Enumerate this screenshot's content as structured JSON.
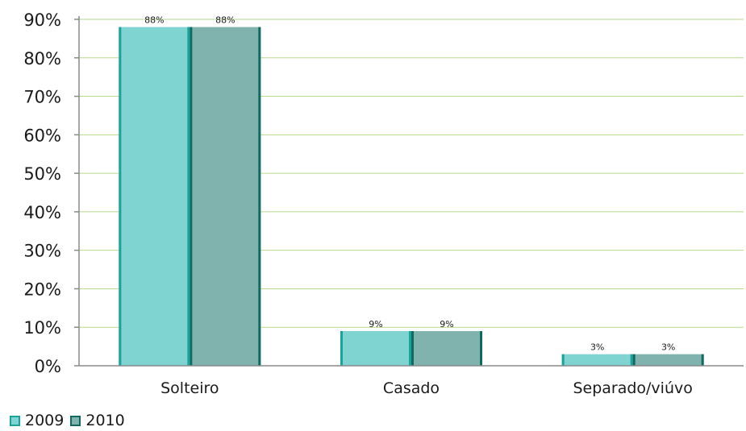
{
  "chart_data": {
    "type": "bar",
    "title": "",
    "xlabel": "",
    "ylabel": "",
    "categories": [
      "Solteiro",
      "Casado",
      "Separado/viúvo"
    ],
    "series": [
      {
        "name": "2009",
        "values": [
          88,
          9,
          3
        ],
        "labels": [
          "88%",
          "9%",
          "3%"
        ],
        "fill": "#7fd3d1",
        "edge": "#1aa39a"
      },
      {
        "name": "2010",
        "values": [
          88,
          9,
          3
        ],
        "labels": [
          "88%",
          "9%",
          "3%"
        ],
        "fill": "#80b3ae",
        "edge": "#0f6b62"
      }
    ],
    "ylim": [
      0,
      90
    ],
    "yticks": [
      0,
      10,
      20,
      30,
      40,
      50,
      60,
      70,
      80,
      90
    ],
    "ytick_labels": [
      "0%",
      "10%",
      "20%",
      "30%",
      "40%",
      "50%",
      "60%",
      "70%",
      "80%",
      "90%"
    ],
    "grid": true,
    "grid_color": "#b7d98a",
    "legend_position": "bottom-left"
  }
}
